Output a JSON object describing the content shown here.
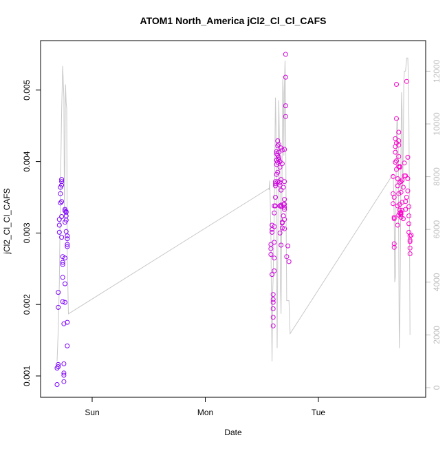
{
  "chart_data": {
    "type": "scatter",
    "title": "ATOM1 North_America jCl2_Cl_Cl_CAFS",
    "xlabel": "Date",
    "ylabel": "jCl2_Cl_Cl_CAFS",
    "x_ticks": [
      "Sun",
      "Mon",
      "Tue"
    ],
    "y_ticks": [
      "0.001",
      "0.002",
      "0.003",
      "0.004",
      "0.005"
    ],
    "y2_ticks": [
      "0",
      "2000",
      "4000",
      "6000",
      "8000",
      "10000",
      "12000"
    ],
    "ylim": [
      0.00085,
      0.0055
    ],
    "y2lim": [
      0,
      12400
    ],
    "grid": false,
    "colors": {
      "points_early": "#7a00ff",
      "points_late": "#ff00c8",
      "secondary_line": "#c8c8c8",
      "right_axis": "#c0c0c0"
    },
    "series": [
      {
        "marker": "open-circle",
        "note": "x in days since Sun 00:00",
        "points": [
          [
            -0.31,
            0.00088
          ],
          [
            -0.31,
            0.00111
          ],
          [
            -0.3,
            0.00116
          ],
          [
            -0.3,
            0.00113
          ],
          [
            -0.3,
            0.00196
          ],
          [
            -0.3,
            0.00217
          ],
          [
            -0.29,
            0.00301
          ],
          [
            -0.29,
            0.00319
          ],
          [
            -0.29,
            0.00311
          ],
          [
            -0.28,
            0.00342
          ],
          [
            -0.28,
            0.00355
          ],
          [
            -0.28,
            0.00364
          ],
          [
            -0.27,
            0.00375
          ],
          [
            -0.27,
            0.00372
          ],
          [
            -0.27,
            0.00367
          ],
          [
            -0.27,
            0.00344
          ],
          [
            -0.27,
            0.00323
          ],
          [
            -0.27,
            0.00294
          ],
          [
            -0.26,
            0.00267
          ],
          [
            -0.26,
            0.00259
          ],
          [
            -0.26,
            0.00256
          ],
          [
            -0.26,
            0.00238
          ],
          [
            -0.26,
            0.00204
          ],
          [
            -0.25,
            0.00173
          ],
          [
            -0.25,
            0.00104
          ],
          [
            -0.25,
            0.00092
          ],
          [
            -0.25,
            0.00101
          ],
          [
            -0.25,
            0.00117
          ],
          [
            -0.24,
            0.00203
          ],
          [
            -0.24,
            0.00229
          ],
          [
            -0.24,
            0.00265
          ],
          [
            -0.24,
            0.00315
          ],
          [
            -0.24,
            0.00331
          ],
          [
            -0.24,
            0.00333
          ],
          [
            -0.23,
            0.0033
          ],
          [
            -0.23,
            0.00329
          ],
          [
            -0.23,
            0.00324
          ],
          [
            -0.23,
            0.00318
          ],
          [
            -0.23,
            0.00302
          ],
          [
            -0.22,
            0.00296
          ],
          [
            -0.22,
            0.00284
          ],
          [
            -0.22,
            0.00281
          ],
          [
            -0.22,
            0.00292
          ],
          [
            -0.22,
            0.00142
          ],
          [
            -0.22,
            0.00175
          ],
          [
            1.58,
            0.0027
          ],
          [
            1.58,
            0.00278
          ],
          [
            1.58,
            0.00284
          ],
          [
            1.59,
            0.00305
          ],
          [
            1.59,
            0.00301
          ],
          [
            1.59,
            0.00311
          ],
          [
            1.59,
            0.00242
          ],
          [
            1.6,
            0.00214
          ],
          [
            1.6,
            0.00207
          ],
          [
            1.6,
            0.00203
          ],
          [
            1.6,
            0.00194
          ],
          [
            1.6,
            0.00182
          ],
          [
            1.6,
            0.0017
          ],
          [
            1.61,
            0.00247
          ],
          [
            1.61,
            0.00265
          ],
          [
            1.61,
            0.00287
          ],
          [
            1.61,
            0.00309
          ],
          [
            1.61,
            0.00328
          ],
          [
            1.61,
            0.00338
          ],
          [
            1.62,
            0.00338
          ],
          [
            1.62,
            0.0035
          ],
          [
            1.62,
            0.00372
          ],
          [
            1.62,
            0.00366
          ],
          [
            1.62,
            0.00369
          ],
          [
            1.63,
            0.00382
          ],
          [
            1.63,
            0.00396
          ],
          [
            1.63,
            0.00402
          ],
          [
            1.63,
            0.00411
          ],
          [
            1.63,
            0.00414
          ],
          [
            1.63,
            0.00402
          ],
          [
            1.64,
            0.00399
          ],
          [
            1.64,
            0.00385
          ],
          [
            1.64,
            0.00372
          ],
          [
            1.64,
            0.00409
          ],
          [
            1.64,
            0.00422
          ],
          [
            1.64,
            0.00429
          ],
          [
            1.65,
            0.00424
          ],
          [
            1.65,
            0.00413
          ],
          [
            1.65,
            0.00406
          ],
          [
            1.65,
            0.00403
          ],
          [
            1.66,
            0.004
          ],
          [
            1.66,
            0.00392
          ],
          [
            1.66,
            0.00371
          ],
          [
            1.66,
            0.00367
          ],
          [
            1.66,
            0.00338
          ],
          [
            1.66,
            0.003
          ],
          [
            1.67,
            0.00283
          ],
          [
            1.67,
            0.00339
          ],
          [
            1.67,
            0.00337
          ],
          [
            1.67,
            0.0036
          ],
          [
            1.67,
            0.00375
          ],
          [
            1.67,
            0.00419
          ],
          [
            1.68,
            0.00416
          ],
          [
            1.68,
            0.00397
          ],
          [
            1.68,
            0.00315
          ],
          [
            1.68,
            0.00307
          ],
          [
            1.68,
            0.00314
          ],
          [
            1.69,
            0.00364
          ],
          [
            1.69,
            0.00324
          ],
          [
            1.69,
            0.0034
          ],
          [
            1.7,
            0.00347
          ],
          [
            1.7,
            0.00372
          ],
          [
            1.7,
            0.00306
          ],
          [
            1.7,
            0.00319
          ],
          [
            1.7,
            0.00333
          ],
          [
            1.7,
            0.0034
          ],
          [
            1.7,
            0.00336
          ],
          [
            1.7,
            0.00417
          ],
          [
            1.71,
            0.0055
          ],
          [
            1.71,
            0.00518
          ],
          [
            1.71,
            0.00478
          ],
          [
            1.71,
            0.00463
          ],
          [
            1.72,
            0.00267
          ],
          [
            1.73,
            0.00282
          ],
          [
            1.74,
            0.0026
          ],
          [
            2.66,
            0.00379
          ],
          [
            2.66,
            0.00355
          ],
          [
            2.66,
            0.00341
          ],
          [
            2.67,
            0.0032
          ],
          [
            2.67,
            0.0035
          ],
          [
            2.67,
            0.00285
          ],
          [
            2.67,
            0.0028
          ],
          [
            2.67,
            0.00322
          ],
          [
            2.68,
            0.00413
          ],
          [
            2.68,
            0.00399
          ],
          [
            2.68,
            0.00421
          ],
          [
            2.68,
            0.00432
          ],
          [
            2.69,
            0.00401
          ],
          [
            2.69,
            0.0046
          ],
          [
            2.69,
            0.00508
          ],
          [
            2.69,
            0.00426
          ],
          [
            2.69,
            0.00389
          ],
          [
            2.7,
            0.00376
          ],
          [
            2.7,
            0.00366
          ],
          [
            2.7,
            0.00338
          ],
          [
            2.7,
            0.00311
          ],
          [
            2.71,
            0.00325
          ],
          [
            2.71,
            0.00355
          ],
          [
            2.71,
            0.00393
          ],
          [
            2.71,
            0.00407
          ],
          [
            2.71,
            0.00429
          ],
          [
            2.71,
            0.00441
          ],
          [
            2.71,
            0.00423
          ],
          [
            2.72,
            0.00393
          ],
          [
            2.72,
            0.00392
          ],
          [
            2.72,
            0.00371
          ],
          [
            2.72,
            0.0034
          ],
          [
            2.72,
            0.00332
          ],
          [
            2.72,
            0.00328
          ],
          [
            2.73,
            0.00329
          ],
          [
            2.73,
            0.00328
          ],
          [
            2.73,
            0.00326
          ],
          [
            2.73,
            0.00322
          ],
          [
            2.73,
            0.00357
          ],
          [
            2.73,
            0.00372
          ],
          [
            2.74,
            0.00374
          ],
          [
            2.74,
            0.00343
          ],
          [
            2.74,
            0.00332
          ],
          [
            2.75,
            0.0032
          ],
          [
            2.75,
            0.00364
          ],
          [
            2.76,
            0.0038
          ],
          [
            2.76,
            0.00398
          ],
          [
            2.77,
            0.0038
          ],
          [
            2.77,
            0.00333
          ],
          [
            2.77,
            0.00344
          ],
          [
            2.78,
            0.0035
          ],
          [
            2.78,
            0.00512
          ],
          [
            2.79,
            0.00406
          ],
          [
            2.79,
            0.00376
          ],
          [
            2.79,
            0.00359
          ],
          [
            2.8,
            0.00337
          ],
          [
            2.8,
            0.00324
          ],
          [
            2.8,
            0.00313
          ],
          [
            2.8,
            0.00301
          ],
          [
            2.81,
            0.00296
          ],
          [
            2.81,
            0.00288
          ],
          [
            2.81,
            0.0029
          ],
          [
            2.81,
            0.00279
          ],
          [
            2.81,
            0.00271
          ],
          [
            2.82,
            0.00297
          ]
        ]
      },
      {
        "type": "line",
        "axis": "right",
        "note": "x in days since Sun 00:00",
        "points": [
          [
            -0.31,
            1000
          ],
          [
            -0.3,
            2200
          ],
          [
            -0.29,
            4000
          ],
          [
            -0.28,
            7500
          ],
          [
            -0.27,
            10500
          ],
          [
            -0.26,
            12200
          ],
          [
            -0.25,
            11000
          ],
          [
            -0.245,
            6500
          ],
          [
            -0.24,
            9000
          ],
          [
            -0.235,
            11500
          ],
          [
            -0.23,
            10800
          ],
          [
            -0.225,
            10600
          ],
          [
            -0.22,
            5000
          ],
          [
            -0.21,
            2800
          ],
          [
            1.56,
            7550
          ],
          [
            1.565,
            7500
          ],
          [
            1.57,
            7850
          ],
          [
            1.575,
            6900
          ],
          [
            1.58,
            5800
          ],
          [
            1.585,
            3200
          ],
          [
            1.59,
            1000
          ],
          [
            1.595,
            3500
          ],
          [
            1.6,
            4200
          ],
          [
            1.61,
            6800
          ],
          [
            1.615,
            8800
          ],
          [
            1.62,
            11000
          ],
          [
            1.625,
            10000
          ],
          [
            1.63,
            5500
          ],
          [
            1.635,
            1500
          ],
          [
            1.64,
            4500
          ],
          [
            1.645,
            8500
          ],
          [
            1.65,
            10900
          ],
          [
            1.655,
            9500
          ],
          [
            1.66,
            8000
          ],
          [
            1.665,
            3800
          ],
          [
            1.67,
            2800
          ],
          [
            1.675,
            6000
          ],
          [
            1.68,
            9200
          ],
          [
            1.685,
            11700
          ],
          [
            1.69,
            11200
          ],
          [
            1.695,
            8800
          ],
          [
            1.7,
            11500
          ],
          [
            1.705,
            12400
          ],
          [
            1.71,
            10800
          ],
          [
            1.715,
            6200
          ],
          [
            1.72,
            3300
          ],
          [
            1.73,
            3300
          ],
          [
            1.74,
            3300
          ],
          [
            1.75,
            2050
          ],
          [
            2.66,
            8100
          ],
          [
            2.665,
            7500
          ],
          [
            2.67,
            6500
          ],
          [
            2.675,
            4000
          ],
          [
            2.68,
            4200
          ],
          [
            2.685,
            7000
          ],
          [
            2.69,
            9500
          ],
          [
            2.695,
            10200
          ],
          [
            2.7,
            10000
          ],
          [
            2.705,
            9000
          ],
          [
            2.71,
            5500
          ],
          [
            2.715,
            1500
          ],
          [
            2.72,
            2500
          ],
          [
            2.725,
            5200
          ],
          [
            2.73,
            9000
          ],
          [
            2.735,
            11200
          ],
          [
            2.74,
            10500
          ],
          [
            2.745,
            7500
          ],
          [
            2.75,
            9000
          ],
          [
            2.755,
            11600
          ],
          [
            2.76,
            12000
          ],
          [
            2.77,
            12000
          ],
          [
            2.78,
            12500
          ],
          [
            2.785,
            12500
          ],
          [
            2.79,
            12500
          ],
          [
            2.795,
            11800
          ],
          [
            2.8,
            10200
          ],
          [
            2.805,
            6500
          ],
          [
            2.81,
            2000
          ]
        ]
      }
    ]
  }
}
